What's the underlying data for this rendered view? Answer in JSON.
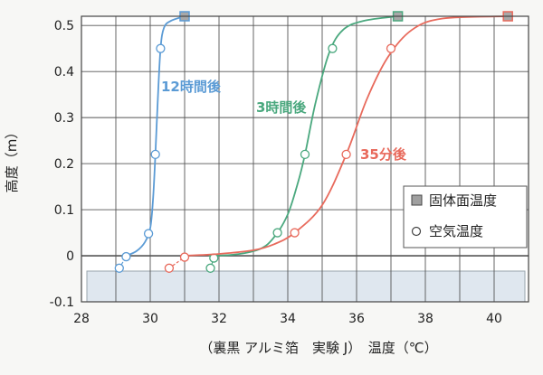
{
  "chart_data": {
    "type": "line",
    "xlabel": "（裏黒 アルミ箔　実験 J）　温度（℃）",
    "ylabel": "高度（m）",
    "xlim": [
      28,
      41
    ],
    "ylim": [
      -0.1,
      0.52
    ],
    "x_ticks": [
      "28",
      "30",
      "32",
      "34",
      "36",
      "38",
      "40"
    ],
    "y_ticks": [
      "0.5",
      "0.4",
      "0.3",
      "0.2",
      "0.1",
      "0",
      "-0.1"
    ],
    "grid": true,
    "legend_position": "right",
    "legend": [
      {
        "label": "固体面温度",
        "marker": "square"
      },
      {
        "label": "空気温度",
        "marker": "circle"
      }
    ],
    "series": [
      {
        "name": "12時間後",
        "color": "#5b9bd5",
        "curve": [
          [
            29.3,
            0
          ],
          [
            29.6,
            0.01
          ],
          [
            29.85,
            0.03
          ],
          [
            30.0,
            0.06
          ],
          [
            30.08,
            0.12
          ],
          [
            30.15,
            0.22
          ],
          [
            30.22,
            0.34
          ],
          [
            30.3,
            0.45
          ],
          [
            30.4,
            0.495
          ],
          [
            30.6,
            0.51
          ],
          [
            31.0,
            0.52
          ]
        ],
        "air_points": [
          [
            29.1,
            -0.027
          ],
          [
            29.3,
            -0.002
          ],
          [
            29.95,
            0.048
          ],
          [
            30.15,
            0.22
          ],
          [
            30.3,
            0.45
          ]
        ],
        "surface_points": [
          [
            31.0,
            0.52
          ]
        ]
      },
      {
        "name": "3時間後",
        "color": "#4aa87e",
        "curve": [
          [
            31.7,
            0
          ],
          [
            32.5,
            0.003
          ],
          [
            33.2,
            0.015
          ],
          [
            33.6,
            0.04
          ],
          [
            34.0,
            0.09
          ],
          [
            34.3,
            0.16
          ],
          [
            34.5,
            0.22
          ],
          [
            34.8,
            0.33
          ],
          [
            35.2,
            0.44
          ],
          [
            35.6,
            0.49
          ],
          [
            36.2,
            0.51
          ],
          [
            37.2,
            0.52
          ]
        ],
        "air_points": [
          [
            31.75,
            -0.027
          ],
          [
            31.85,
            -0.005
          ],
          [
            33.7,
            0.05
          ],
          [
            34.5,
            0.22
          ],
          [
            35.3,
            0.45
          ]
        ],
        "surface_points": [
          [
            37.2,
            0.52
          ]
        ]
      },
      {
        "name": "35分後",
        "color": "#e86a5c",
        "curve": [
          [
            31.0,
            0
          ],
          [
            32.0,
            0.004
          ],
          [
            33.0,
            0.012
          ],
          [
            33.6,
            0.025
          ],
          [
            34.2,
            0.05
          ],
          [
            35.0,
            0.11
          ],
          [
            35.7,
            0.22
          ],
          [
            36.3,
            0.34
          ],
          [
            36.9,
            0.43
          ],
          [
            37.6,
            0.49
          ],
          [
            38.5,
            0.515
          ],
          [
            40.4,
            0.52
          ]
        ],
        "air_points": [
          [
            30.55,
            -0.027
          ],
          [
            31.0,
            -0.003
          ],
          [
            34.2,
            0.05
          ],
          [
            35.7,
            0.22
          ],
          [
            37.0,
            0.45
          ]
        ],
        "surface_points": [
          [
            40.4,
            0.52
          ]
        ]
      }
    ]
  }
}
